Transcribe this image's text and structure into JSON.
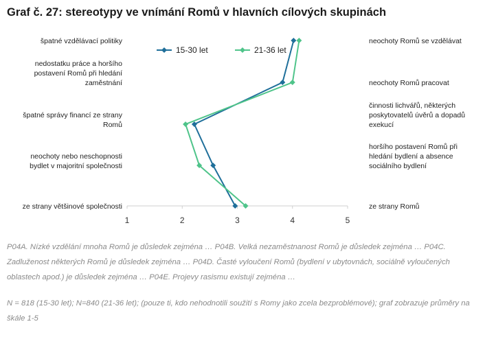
{
  "title": "Graf č. 27: stereotypy ve vnímání Romů v hlavních cílových skupinách",
  "chart_data": {
    "type": "line",
    "orientation": "horizontal",
    "xlim": [
      1,
      5
    ],
    "x_ticks": [
      "1",
      "2",
      "3",
      "4",
      "5"
    ],
    "left_labels": [
      [
        "špatné vzdělávací politiky"
      ],
      [
        "nedostatku práce a horšího",
        "postavení Romů při hledání",
        "zaměstnání"
      ],
      [
        "špatné správy financí ze strany",
        "Romů"
      ],
      [
        "neochoty nebo neschopnosti",
        "bydlet v majoritní společnosti"
      ],
      [
        "ze strany většinové společnosti"
      ]
    ],
    "right_labels": [
      [
        "neochoty Romů se vzdělávat"
      ],
      [
        "neochoty Romů pracovat"
      ],
      [
        "činnosti lichvářů, některých",
        "poskytovatelů úvěrů a dopadů",
        "exekucí"
      ],
      [
        "horšího postavení Romů při",
        "hledání bydlení a absence",
        "sociálního bydlení"
      ],
      [
        "ze strany Romů"
      ]
    ],
    "series": [
      {
        "name": "15-30 let",
        "color": "#1f6f9a",
        "marker": "diamond",
        "values": [
          4.02,
          3.82,
          2.22,
          2.56,
          2.96
        ]
      },
      {
        "name": "21-36 let",
        "color": "#4fc48a",
        "marker": "diamond",
        "values": [
          4.12,
          4.0,
          2.06,
          2.31,
          3.15
        ]
      }
    ],
    "legend": "top-center"
  },
  "notes": {
    "questions": "P04A. Nízké vzdělání mnoha Romů je důsledek zejména … P04B. Velká nezaměstnanost Romů je důsledek zejména … P04C. Zadluženost některých Romů je důsledek zejména … P04D. Časté vyloučení Romů (bydlení v ubytovnách, sociálně vyloučených oblastech apod.) je důsledek zejména … P04E. Projevy rasismu existují zejména …",
    "sample": "N = 818 (15-30 let); N=840 (21-36 let); (pouze ti, kdo nehodnotili soužití s Romy jako zcela bezproblémové); graf zobrazuje průměry na škále 1-5"
  }
}
